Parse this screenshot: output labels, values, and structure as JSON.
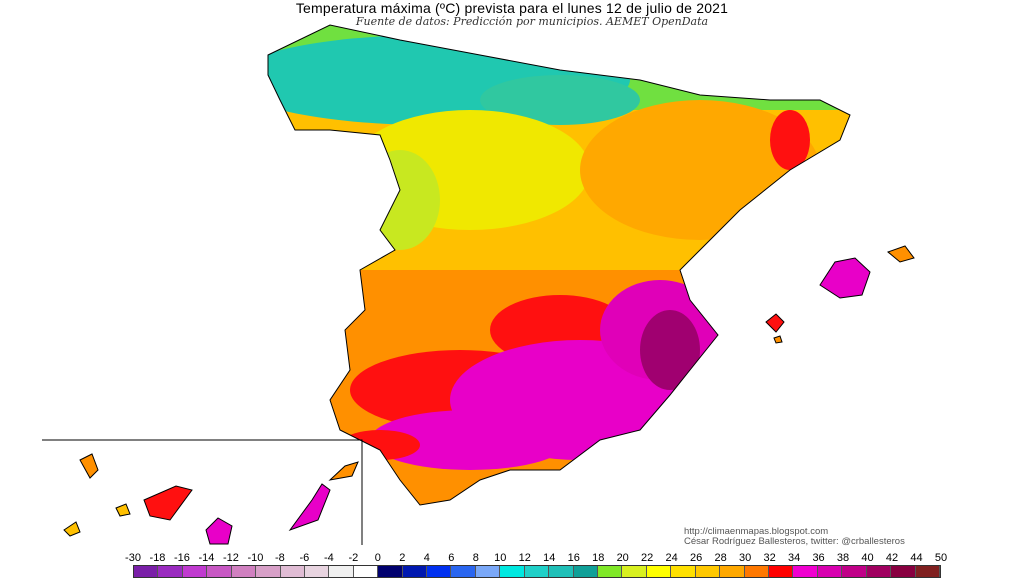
{
  "title": "Temperatura máxima (ºC) prevista para el lunes 12 de julio de 2021",
  "subtitle": "Fuente de datos: Predicción por municipios. AEMET OpenData",
  "credits": {
    "url": "http://climaenmapas.blogspot.com",
    "author": "César Rodríguez Ballesteros, twitter: @crballesteros"
  },
  "legend": {
    "labels": [
      "-30",
      "-18",
      "-16",
      "-14",
      "-12",
      "-10",
      "-8",
      "-6",
      "-4",
      "-2",
      "0",
      "2",
      "4",
      "6",
      "8",
      "10",
      "12",
      "14",
      "16",
      "18",
      "20",
      "22",
      "24",
      "26",
      "28",
      "30",
      "32",
      "34",
      "36",
      "38",
      "40",
      "42",
      "44",
      "50"
    ],
    "colors": [
      "#7a1fa8",
      "#9a2bc0",
      "#c03ad0",
      "#c858c4",
      "#d080c0",
      "#d8a0c8",
      "#e0bcd4",
      "#e8d4e0",
      "#f0f0f0",
      "#ffffff",
      "#00006e",
      "#0018b0",
      "#0030f0",
      "#2a66f0",
      "#7aa8f8",
      "#00e8e0",
      "#20d0c8",
      "#20c0b8",
      "#10a098",
      "#80e828",
      "#d8f020",
      "#ffff00",
      "#ffe000",
      "#ffc800",
      "#ffa800",
      "#ff7800",
      "#ff0000",
      "#f000d0",
      "#d800b0",
      "#c00088",
      "#a00060",
      "#880040",
      "#802020"
    ]
  },
  "map_colors": {
    "cool": "#20c8b0",
    "green": "#80e030",
    "yellow": "#f8e800",
    "gold": "#ffc000",
    "orange": "#ff9000",
    "red": "#ff1010",
    "magenta": "#e800c8",
    "dark": "#a00070"
  }
}
